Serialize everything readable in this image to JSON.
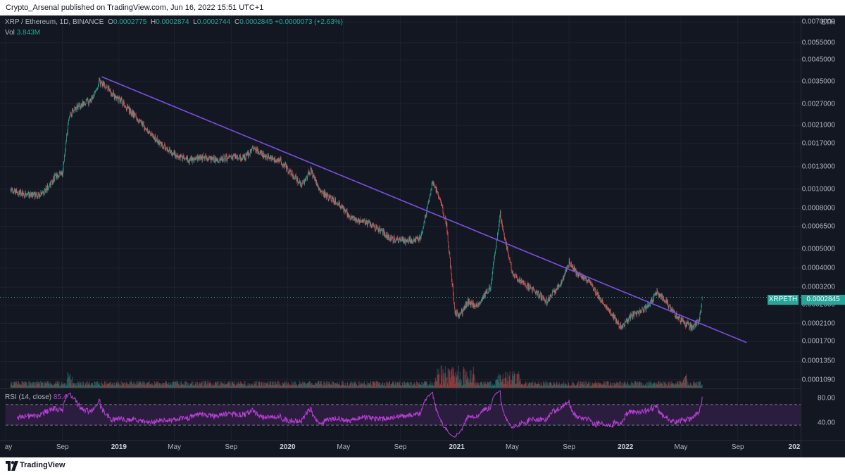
{
  "publish_bar": {
    "text": "Crypto_Arsenal published on TradingView.com, Jun 16, 2022 15:51 UTC+1"
  },
  "legend": {
    "symbol": "XRP / Ethereum, 1D, BINANCE",
    "open_label": "O",
    "open": "0.0002775",
    "high_label": "H",
    "high": "0.0002874",
    "low_label": "L",
    "low": "0.0002744",
    "close_label": "C",
    "close": "0.0002845",
    "change": "+0.0000073 (+2.63%)",
    "vol_label": "Vol",
    "vol": "3.843M"
  },
  "rsi_legend": {
    "label": "RSI (14, close)",
    "value": "85.4"
  },
  "price_axis": {
    "currency": "ETH",
    "labels": [
      "0.0070000",
      "0.0055000",
      "0.0045000",
      "0.0035000",
      "0.0027000",
      "0.0021000",
      "0.0017000",
      "0.0013000",
      "0.0010000",
      "0.0008000",
      "0.0006500",
      "0.0005000",
      "0.0004000",
      "0.0003200",
      "0.0002600",
      "0.0002100",
      "0.0001700",
      "0.0001350",
      "0.0001090"
    ]
  },
  "current_price": {
    "symbol": "XRPETH",
    "price": "0.0002845"
  },
  "rsi_axis": {
    "labels": [
      "80.00",
      "40.00"
    ]
  },
  "time_axis": {
    "labels": [
      "ay",
      "Sep",
      "2019",
      "May",
      "Sep",
      "2020",
      "May",
      "Sep",
      "2021",
      "May",
      "Sep",
      "2022",
      "May",
      "Sep",
      "202"
    ]
  },
  "footer": {
    "brand": "TradingView"
  },
  "colors": {
    "background": "#131722",
    "up": "#26a69a",
    "down": "#ef5350",
    "trendline": "#7b4fe0",
    "rsi_line": "#b83fd6",
    "rsi_band": "#2a1d3d"
  },
  "chart_data": {
    "type": "candlestick",
    "symbol": "XRPETH",
    "interval": "1D",
    "scale": "log",
    "x_unit": "date",
    "ylim": [
      0.0001,
      0.008
    ],
    "close_series": {
      "x": [
        "2018-05-20",
        "2018-06-10",
        "2018-07-01",
        "2018-07-20",
        "2018-08-05",
        "2018-08-15",
        "2018-09-01",
        "2018-09-15",
        "2018-10-01",
        "2018-11-01",
        "2018-11-20",
        "2018-12-05",
        "2018-12-20",
        "2019-01-05",
        "2019-02-01",
        "2019-03-01",
        "2019-04-01",
        "2019-05-01",
        "2019-06-01",
        "2019-07-01",
        "2019-08-01",
        "2019-09-01",
        "2019-10-01",
        "2019-10-20",
        "2019-11-15",
        "2019-12-15",
        "2020-01-10",
        "2020-02-01",
        "2020-02-20",
        "2020-03-10",
        "2020-03-25",
        "2020-04-20",
        "2020-05-15",
        "2020-06-15",
        "2020-07-15",
        "2020-08-15",
        "2020-09-15",
        "2020-10-15",
        "2020-11-10",
        "2020-11-25",
        "2020-12-10",
        "2020-12-28",
        "2021-01-08",
        "2021-01-25",
        "2021-02-15",
        "2021-03-15",
        "2021-04-05",
        "2021-04-14",
        "2021-05-01",
        "2021-05-20",
        "2021-06-15",
        "2021-07-15",
        "2021-08-15",
        "2021-09-01",
        "2021-09-20",
        "2021-10-15",
        "2021-11-15",
        "2021-12-05",
        "2021-12-20",
        "2022-01-15",
        "2022-02-15",
        "2022-03-10",
        "2022-03-25",
        "2022-04-20",
        "2022-05-10",
        "2022-05-25",
        "2022-06-10",
        "2022-06-16"
      ],
      "close": [
        0.00098,
        0.00095,
        0.00093,
        0.00095,
        0.00105,
        0.00115,
        0.0012,
        0.00235,
        0.0026,
        0.0028,
        0.0035,
        0.0033,
        0.003,
        0.0028,
        0.0024,
        0.002,
        0.0017,
        0.0015,
        0.0014,
        0.00145,
        0.0014,
        0.00145,
        0.00145,
        0.00162,
        0.00145,
        0.0014,
        0.0012,
        0.00105,
        0.00125,
        0.00098,
        0.00093,
        0.00085,
        0.00072,
        0.00068,
        0.00063,
        0.00056,
        0.00055,
        0.00056,
        0.0011,
        0.0009,
        0.00065,
        0.00024,
        0.00023,
        0.00027,
        0.00026,
        0.00032,
        0.00075,
        0.00058,
        0.00038,
        0.00034,
        0.00031,
        0.00027,
        0.00034,
        0.00043,
        0.00037,
        0.00034,
        0.00026,
        0.00023,
        0.0002,
        0.00023,
        0.00025,
        0.0003,
        0.00028,
        0.00023,
        0.00021,
        0.0002,
        0.00022,
        0.0002845
      ]
    },
    "trendline": {
      "start": {
        "x": "2018-11-25",
        "y": 0.0037
      },
      "end": {
        "x": "2022-09-20",
        "y": 0.000168
      }
    },
    "rsi": {
      "length": 14,
      "upper_band": 70,
      "lower_band": 30,
      "last": 85.4,
      "ticks": [
        80,
        40
      ]
    }
  }
}
